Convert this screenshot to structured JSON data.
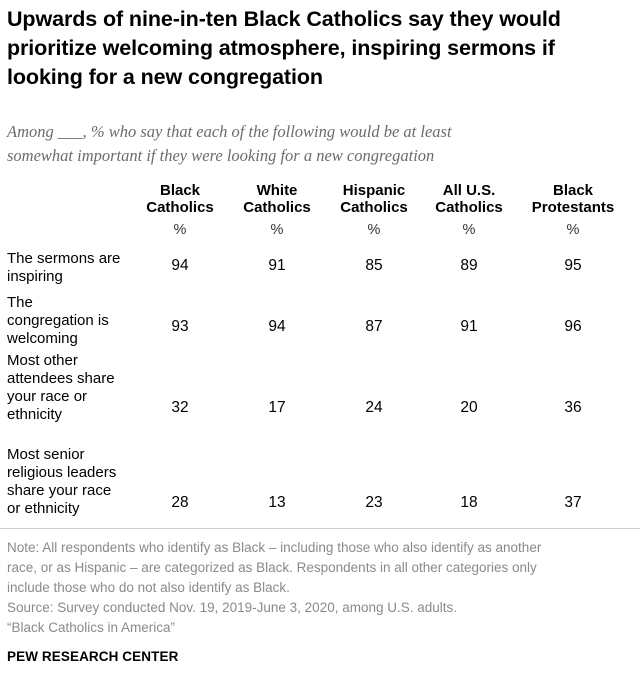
{
  "chart_data": {
    "type": "table",
    "title_lines": [
      "Upwards of nine-in-ten Black Catholics say they would",
      "prioritize welcoming atmosphere, inspiring sermons if",
      "looking for a new congregation"
    ],
    "subtitle_lines": [
      "Among ___, % who say that each of the following would be at least",
      "somewhat important if they were looking for a new congregation"
    ],
    "columns": [
      {
        "line1": "Black",
        "line2": "Catholics"
      },
      {
        "line1": "White",
        "line2": "Catholics"
      },
      {
        "line1": "Hispanic",
        "line2": "Catholics"
      },
      {
        "line1": "All U.S.",
        "line2": "Catholics"
      },
      {
        "line1": "Black",
        "line2": "Protestants"
      }
    ],
    "unit": "%",
    "rows": [
      {
        "label_lines": [
          "The sermons are",
          "inspiring"
        ],
        "values": [
          94,
          91,
          85,
          89,
          95
        ]
      },
      {
        "label_lines": [
          "The",
          "congregation is",
          "welcoming"
        ],
        "values": [
          93,
          94,
          87,
          91,
          96
        ]
      },
      {
        "label_lines": [
          "Most other",
          "attendees share",
          "your race or",
          "ethnicity"
        ],
        "values": [
          32,
          17,
          24,
          20,
          36
        ]
      },
      {
        "label_lines": [
          "Most senior",
          "religious leaders",
          "share your race",
          "or ethnicity"
        ],
        "values": [
          28,
          13,
          23,
          18,
          37
        ]
      }
    ]
  },
  "notes": {
    "note_lines": [
      "Note: All respondents who identify as Black – including those who also identify as another",
      "race, or as Hispanic – are categorized as Black. Respondents in all other categories only",
      "include those who do not also identify as Black."
    ],
    "source": "Source: Survey conducted Nov. 19, 2019-June 3, 2020, among U.S. adults.",
    "report": "“Black Catholics in America”"
  },
  "brand": "PEW RESEARCH CENTER"
}
